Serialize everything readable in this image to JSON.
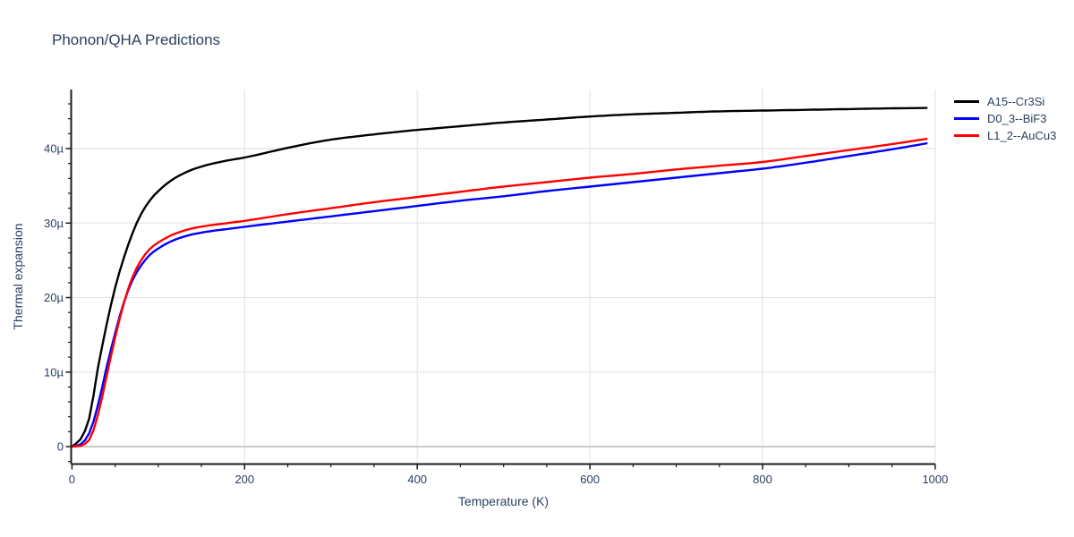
{
  "page": {
    "title": "Phonon/QHA Predictions"
  },
  "colors": {
    "text": "#2a3f5f",
    "axis": "#1c1c1c",
    "grid": "#e4e4e4",
    "zeroline": "#cdcdcd",
    "background": "#ffffff"
  },
  "chart_data": {
    "type": "line",
    "title": "Phonon/QHA Predictions",
    "xlabel": "Temperature (K)",
    "ylabel": "Thermal expansion",
    "xlim": [
      0,
      1000
    ],
    "ylim": [
      -2.4,
      47.9
    ],
    "y_unit_suffix": "µ",
    "grid": true,
    "legend_position": "top-right-outside",
    "x_ticks": [
      0,
      200,
      400,
      600,
      800,
      1000
    ],
    "x_tick_labels": [
      "0",
      "200",
      "400",
      "600",
      "800",
      "1000"
    ],
    "x_minor_step": 50,
    "y_ticks": [
      0,
      10,
      20,
      30,
      40
    ],
    "y_tick_labels": [
      "0",
      "10µ",
      "20µ",
      "30µ",
      "40µ"
    ],
    "y_minor_step": 2,
    "y_minor_range": [
      -2,
      46
    ],
    "series": [
      {
        "name": "A15--Cr3Si",
        "color": "#000000",
        "points": [
          [
            0,
            0
          ],
          [
            10,
            1.0
          ],
          [
            20,
            3.8
          ],
          [
            30,
            10.5
          ],
          [
            40,
            16.3
          ],
          [
            50,
            21.3
          ],
          [
            60,
            25.3
          ],
          [
            70,
            28.6
          ],
          [
            80,
            31.2
          ],
          [
            90,
            33.0
          ],
          [
            100,
            34.3
          ],
          [
            120,
            36.1
          ],
          [
            140,
            37.2
          ],
          [
            160,
            37.9
          ],
          [
            180,
            38.4
          ],
          [
            200,
            38.8
          ],
          [
            250,
            40.1
          ],
          [
            300,
            41.2
          ],
          [
            350,
            41.9
          ],
          [
            400,
            42.5
          ],
          [
            450,
            43.0
          ],
          [
            500,
            43.5
          ],
          [
            550,
            43.9
          ],
          [
            600,
            44.3
          ],
          [
            650,
            44.6
          ],
          [
            700,
            44.8
          ],
          [
            750,
            45.0
          ],
          [
            800,
            45.1
          ],
          [
            850,
            45.2
          ],
          [
            900,
            45.3
          ],
          [
            950,
            45.4
          ],
          [
            990,
            45.45
          ]
        ]
      },
      {
        "name": "D0_3--BiF3",
        "color": "#0000ff",
        "points": [
          [
            0,
            0
          ],
          [
            10,
            0.3
          ],
          [
            20,
            1.8
          ],
          [
            30,
            5.5
          ],
          [
            40,
            10.6
          ],
          [
            50,
            15.2
          ],
          [
            60,
            19.3
          ],
          [
            70,
            22.3
          ],
          [
            80,
            24.3
          ],
          [
            90,
            25.7
          ],
          [
            100,
            26.6
          ],
          [
            120,
            27.8
          ],
          [
            140,
            28.5
          ],
          [
            160,
            28.9
          ],
          [
            180,
            29.2
          ],
          [
            200,
            29.5
          ],
          [
            250,
            30.2
          ],
          [
            300,
            30.9
          ],
          [
            350,
            31.6
          ],
          [
            400,
            32.3
          ],
          [
            450,
            33.0
          ],
          [
            500,
            33.6
          ],
          [
            550,
            34.3
          ],
          [
            600,
            34.9
          ],
          [
            650,
            35.5
          ],
          [
            700,
            36.1
          ],
          [
            750,
            36.7
          ],
          [
            800,
            37.3
          ],
          [
            850,
            38.1
          ],
          [
            900,
            39.0
          ],
          [
            950,
            39.9
          ],
          [
            990,
            40.7
          ]
        ]
      },
      {
        "name": "L1_2--AuCu3",
        "color": "#ff0000",
        "points": [
          [
            0,
            0
          ],
          [
            10,
            0.1
          ],
          [
            20,
            0.9
          ],
          [
            30,
            4.2
          ],
          [
            40,
            9.4
          ],
          [
            50,
            14.6
          ],
          [
            60,
            19.2
          ],
          [
            70,
            22.7
          ],
          [
            80,
            25.0
          ],
          [
            90,
            26.5
          ],
          [
            100,
            27.4
          ],
          [
            120,
            28.6
          ],
          [
            140,
            29.3
          ],
          [
            160,
            29.7
          ],
          [
            180,
            30.0
          ],
          [
            200,
            30.3
          ],
          [
            250,
            31.2
          ],
          [
            300,
            32.0
          ],
          [
            350,
            32.8
          ],
          [
            400,
            33.5
          ],
          [
            450,
            34.2
          ],
          [
            500,
            34.9
          ],
          [
            550,
            35.5
          ],
          [
            600,
            36.1
          ],
          [
            650,
            36.6
          ],
          [
            700,
            37.2
          ],
          [
            750,
            37.7
          ],
          [
            800,
            38.2
          ],
          [
            850,
            39.0
          ],
          [
            900,
            39.8
          ],
          [
            950,
            40.6
          ],
          [
            990,
            41.3
          ]
        ]
      }
    ]
  }
}
